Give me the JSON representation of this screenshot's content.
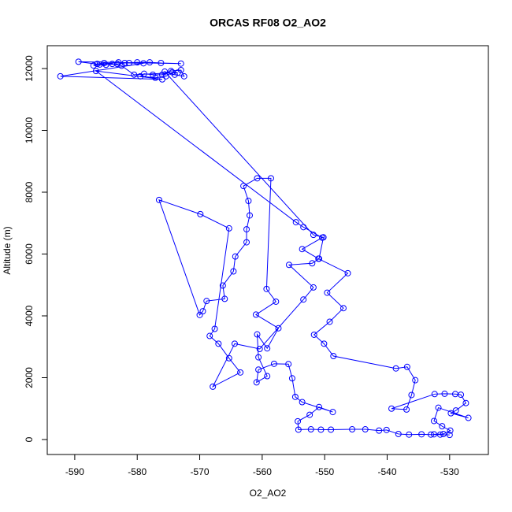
{
  "chart_data": {
    "type": "line",
    "markers": true,
    "title": "ORCAS RF08 O2_AO2",
    "x_label": "O2_AO2",
    "y_label": "Altitude (m)",
    "xlim": [
      -594.4,
      -523.8
    ],
    "ylim": [
      -484,
      12739
    ],
    "xticks": [
      -590,
      -580,
      -570,
      -560,
      -550,
      -540,
      -530
    ],
    "yticks": [
      0,
      2000,
      4000,
      6000,
      8000,
      10000,
      12000
    ],
    "grid": false,
    "series": [
      {
        "color": "#0000ff",
        "x": [
          -530.0,
          -531.5,
          -533.0,
          -534.5,
          -536.5,
          -538.2,
          -540.1,
          -541.3,
          -543.5,
          -545.6,
          -549.0,
          -550.6,
          -552.2,
          -554.2,
          -554.3,
          -552.4,
          -550.9,
          -548.7,
          -553.6,
          -554.7,
          -555.2,
          -555.8,
          -558.1,
          -560.6,
          -560.9,
          -559.2,
          -560.6,
          -560.8,
          -559.2,
          -557.4,
          -561.0,
          -557.8,
          -559.3,
          -558.6,
          -560.8,
          -563.0,
          -562.2,
          -562.0,
          -562.5,
          -562.5,
          -564.3,
          -564.6,
          -566.3,
          -566.0,
          -568.9,
          -569.5,
          -570.0,
          -576.5,
          -569.9,
          -565.3,
          -567.6,
          -568.4,
          -567.0,
          -565.3,
          -563.5,
          -567.9,
          -564.4,
          -560.4,
          -553.4,
          -551.8,
          -555.7,
          -552.0,
          -550.9,
          -550.2,
          -551.8,
          -575.6,
          -574.0,
          -572.5,
          -573.0,
          -574.6,
          -576.0,
          -577.5,
          -578.9,
          -579.5,
          -577.1,
          -575.4,
          -574.4,
          -573.5,
          -580.5,
          -582.5,
          -584.0,
          -585.3,
          -586.4,
          -587.0,
          -585.0,
          -583.2,
          -582.0,
          -580.0,
          -578.0,
          -576.2,
          -573.0,
          -589.4,
          -586.0,
          -583.0,
          -581.3,
          -579.0,
          -592.3,
          -576.0,
          -586.6,
          -554.6,
          -553.4,
          -550.4,
          -553.6,
          -551.0,
          -546.3,
          -549.6,
          -547.0,
          -549.2,
          -551.7,
          -550.1,
          -548.6,
          -538.6,
          -536.8,
          -535.5,
          -536.1,
          -536.9,
          -539.3,
          -532.4,
          -530.8,
          -529.1,
          -528.2,
          -527.4,
          -529.0,
          -529.8,
          -527.0,
          -531.8,
          -532.5,
          -531.2,
          -529.9,
          -531.0,
          -532.5
        ],
        "values": [
          150,
          160,
          160,
          170,
          160,
          180,
          310,
          290,
          330,
          330,
          320,
          320,
          330,
          320,
          590,
          800,
          1050,
          890,
          1210,
          1380,
          1980,
          2440,
          2450,
          2260,
          1850,
          2050,
          2660,
          3400,
          2950,
          3600,
          4040,
          4460,
          4870,
          8450,
          8450,
          8200,
          7720,
          7250,
          6800,
          6380,
          5920,
          5440,
          4980,
          4550,
          4480,
          4150,
          4030,
          7750,
          7290,
          6830,
          3580,
          3350,
          3100,
          2630,
          2170,
          1710,
          3100,
          2930,
          4530,
          4920,
          5650,
          5700,
          5850,
          6540,
          6620,
          11900,
          11800,
          11750,
          11950,
          11920,
          11800,
          11800,
          11830,
          11750,
          11700,
          11750,
          11880,
          11870,
          11800,
          12090,
          12150,
          12180,
          12150,
          12100,
          12120,
          12150,
          12180,
          12200,
          12200,
          12180,
          12160,
          12220,
          12130,
          12200,
          12180,
          12170,
          11750,
          11650,
          11920,
          7030,
          6870,
          6530,
          6160,
          5850,
          5380,
          4750,
          4250,
          3810,
          3390,
          3100,
          2700,
          2300,
          2350,
          1920,
          1440,
          970,
          1000,
          1470,
          1480,
          1470,
          1450,
          1180,
          940,
          850,
          700,
          1030,
          600,
          430,
          290,
          180,
          170
        ]
      }
    ]
  }
}
